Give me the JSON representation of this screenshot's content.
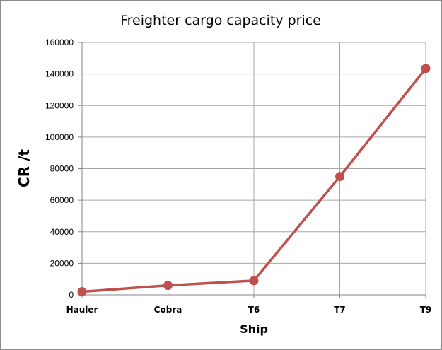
{
  "chart_data": {
    "type": "line",
    "title": "Freighter cargo capacity price",
    "xlabel": "Ship",
    "ylabel": "CR /t",
    "categories": [
      "Hauler",
      "Cobra",
      "T6",
      "T7",
      "T9"
    ],
    "series": [
      {
        "values": [
          2000,
          6000,
          9000,
          75000,
          143500
        ],
        "color": "#c0504d"
      }
    ],
    "ylim": [
      0,
      160000
    ],
    "yticks": [
      "0",
      "20000",
      "40000",
      "60000",
      "80000",
      "100000",
      "120000",
      "140000",
      "160000"
    ],
    "grid": true,
    "legend": "none"
  }
}
